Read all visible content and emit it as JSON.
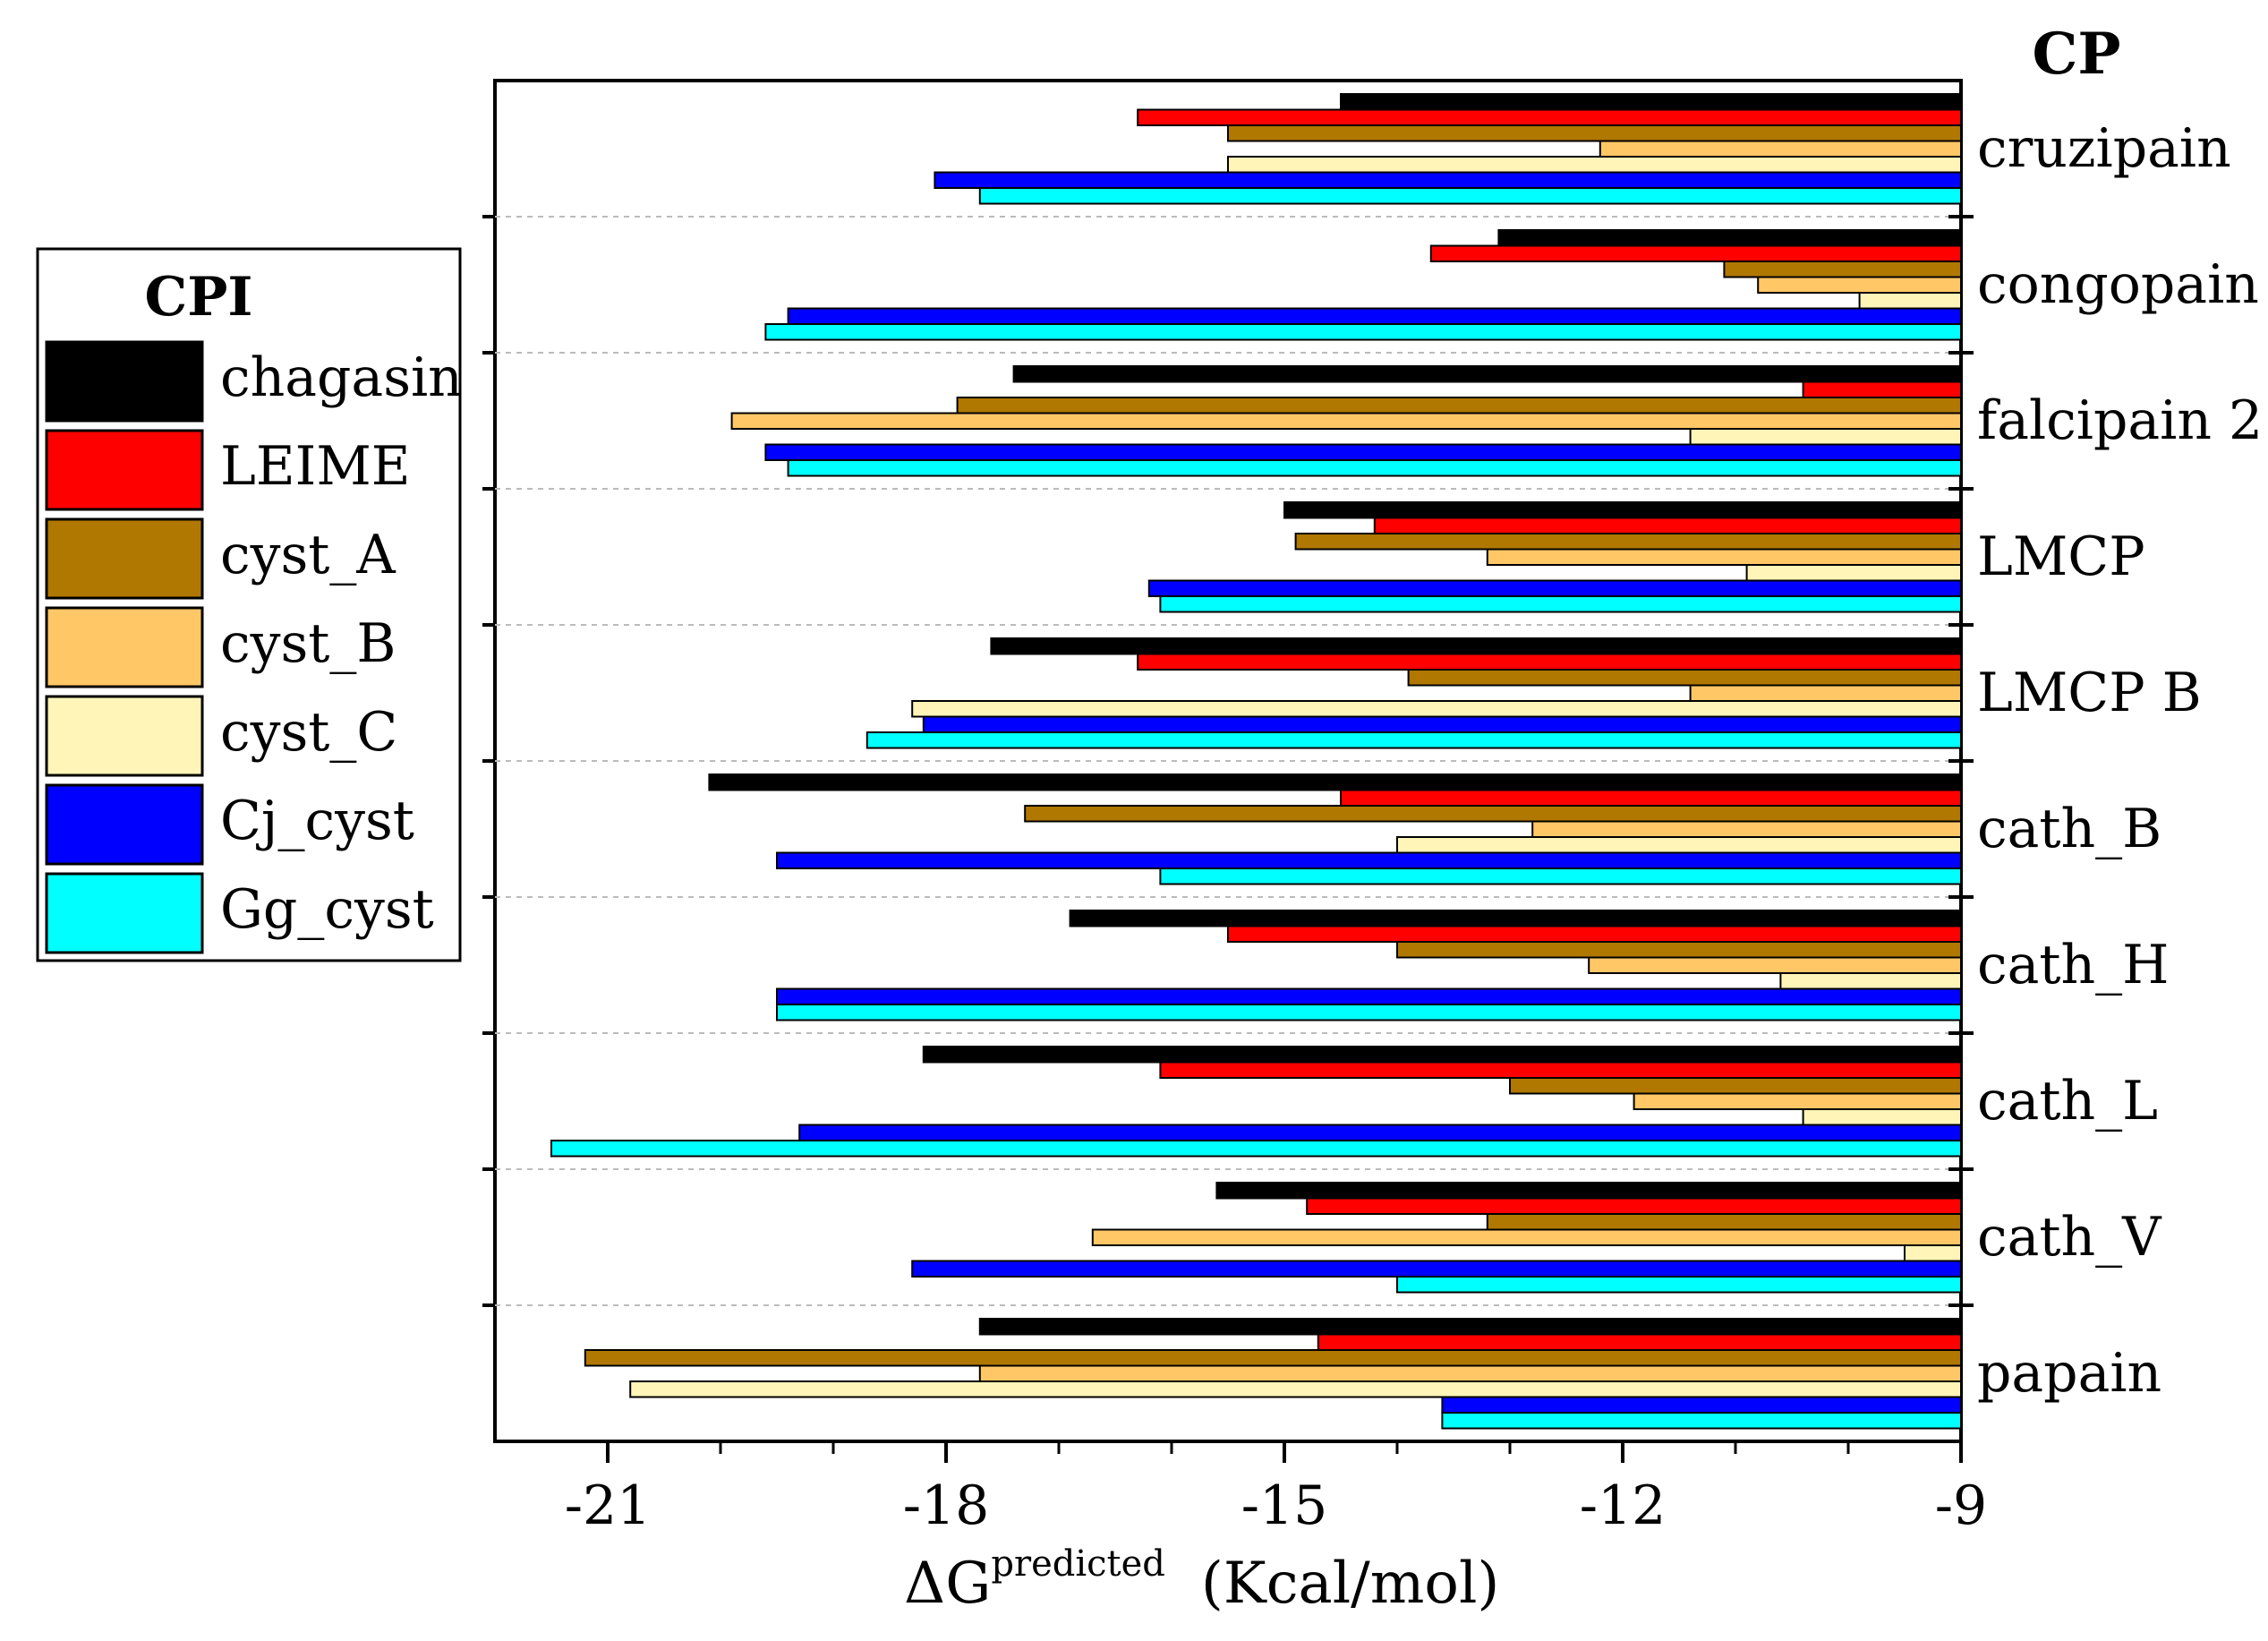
{
  "chart_data": {
    "type": "bar",
    "orientation": "horizontal",
    "categories": [
      "cruzipain",
      "congopain",
      "falcipain 2",
      "LMCP",
      "LMCP B",
      "cath_B",
      "cath_H",
      "cath_L",
      "cath_V",
      "papain"
    ],
    "category_axis_title": "CP",
    "legend_title": "CPI",
    "legend_position": "left",
    "xlabel_prefix": "ΔG",
    "xlabel_superscript": "predicted",
    "xlabel_unit": "(Kcal/mol)",
    "xlim": [
      -22,
      -9
    ],
    "xticks": [
      -21,
      -18,
      -15,
      -12,
      -9
    ],
    "xtick_labels": [
      "-21",
      "-18",
      "-15",
      "-12",
      "-9"
    ],
    "series": [
      {
        "name": "chagasin",
        "color": "#000000",
        "values": [
          -14.5,
          -13.1,
          -17.4,
          -15.0,
          -17.6,
          -20.1,
          -16.9,
          -18.2,
          -15.6,
          -17.7
        ]
      },
      {
        "name": "LEIME",
        "color": "#ff0000",
        "values": [
          -16.3,
          -13.7,
          -10.4,
          -14.2,
          -16.3,
          -14.5,
          -15.5,
          -16.1,
          -14.8,
          -14.7
        ]
      },
      {
        "name": "cyst_A",
        "color": "#b07800",
        "values": [
          -15.5,
          -11.1,
          -17.9,
          -14.9,
          -13.9,
          -17.3,
          -14.0,
          -13.0,
          -13.2,
          -21.2
        ]
      },
      {
        "name": "cyst_B",
        "color": "#ffc766",
        "values": [
          -12.2,
          -10.8,
          -19.9,
          -13.2,
          -11.4,
          -12.8,
          -12.3,
          -11.9,
          -16.7,
          -17.7
        ]
      },
      {
        "name": "cyst_C",
        "color": "#fff5b8",
        "values": [
          -15.5,
          -9.9,
          -11.4,
          -10.9,
          -18.3,
          -14.0,
          -10.6,
          -10.4,
          -9.5,
          -20.8
        ]
      },
      {
        "name": "Cj_cyst",
        "color": "#0000ff",
        "values": [
          -18.1,
          -19.4,
          -19.6,
          -16.2,
          -18.2,
          -19.5,
          -19.5,
          -19.3,
          -18.3,
          -13.6
        ]
      },
      {
        "name": "Gg_cyst",
        "color": "#00ffff",
        "values": [
          -17.7,
          -19.6,
          -19.4,
          -16.1,
          -18.7,
          -16.1,
          -19.5,
          -21.5,
          -14.0,
          -13.6
        ]
      }
    ]
  }
}
